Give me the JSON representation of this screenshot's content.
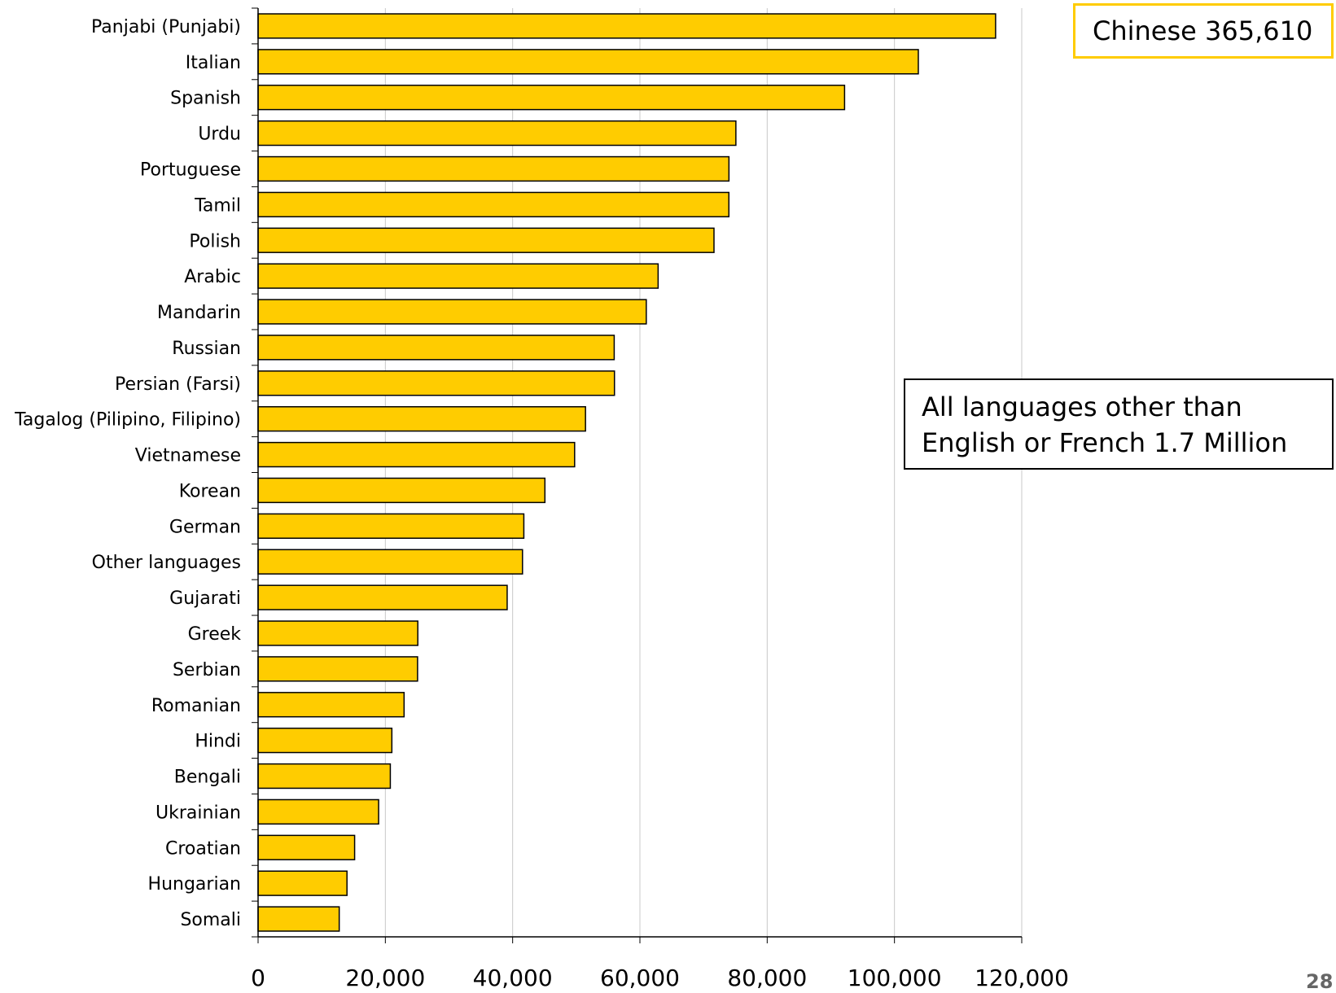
{
  "chart_data": {
    "type": "bar",
    "orientation": "horizontal",
    "categories": [
      "Panjabi (Punjabi)",
      "Italian",
      "Spanish",
      "Urdu",
      "Portuguese",
      "Tamil",
      "Polish",
      "Arabic",
      "Mandarin",
      "Russian",
      "Persian (Farsi)",
      "Tagalog (Pilipino, Filipino)",
      "Vietnamese",
      "Korean",
      "German",
      "Other languages",
      "Gujarati",
      "Greek",
      "Serbian",
      "Romanian",
      "Hindi",
      "Bengali",
      "Ukrainian",
      "Croatian",
      "Hungarian",
      "Somali"
    ],
    "values": [
      115890,
      103750,
      92160,
      75080,
      73990,
      73980,
      71640,
      62860,
      61000,
      55960,
      56000,
      51450,
      49740,
      45070,
      41760,
      41550,
      39140,
      25100,
      25060,
      22940,
      21020,
      20780,
      18940,
      15170,
      13970,
      12750
    ],
    "xlim": [
      0,
      120000
    ],
    "xticks": [
      "0",
      "20,000",
      "40,000",
      "60,000",
      "80,000",
      "100,000",
      "120,000"
    ],
    "xtick_values": [
      0,
      20000,
      40000,
      60000,
      80000,
      100000,
      120000
    ],
    "grid": "vertical",
    "bar_color": "#FFCC00",
    "title": "",
    "xlabel": "",
    "ylabel": "",
    "annotations": {
      "chinese": "Chinese 365,610",
      "all_languages_line1": "All languages other than",
      "all_languages_line2": "English or French 1.7 Million"
    }
  },
  "page_number": "28"
}
